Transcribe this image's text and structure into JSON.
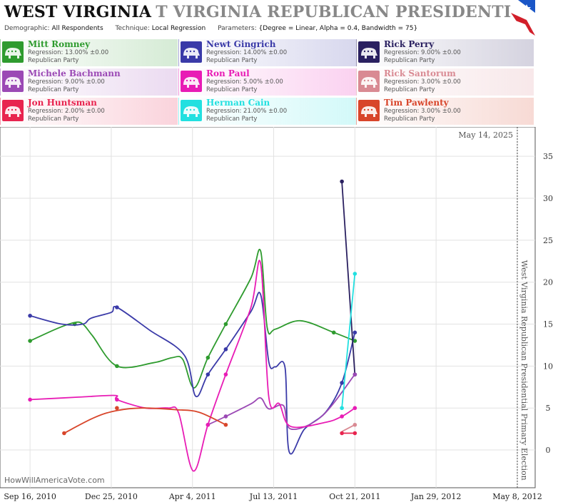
{
  "header": {
    "title_main": "WEST VIRGINIA",
    "title_sub": "T VIRGINIA REPUBLICAN PRESIDENTIAL PRIMA",
    "demographic_label": "Demographic:",
    "demographic_value": "All Respondents",
    "technique_label": "Technique:",
    "technique_value": "Local Regression",
    "parameters_label": "Parameters:",
    "parameters_value": "{Degree = Linear, Alpha = 0.4, Bandwidth = 75}"
  },
  "candidates": [
    {
      "name": "Mitt Romney",
      "regression": "Regression: 13.00% ±0.00",
      "party": "Republican Party",
      "color": "#2e9b2e",
      "icon": "elephant-icon"
    },
    {
      "name": "Newt Gingrich",
      "regression": "Regression: 14.00% ±0.00",
      "party": "Republican Party",
      "color": "#3a3aa8",
      "icon": "elephant-icon"
    },
    {
      "name": "Rick Perry",
      "regression": "Regression: 9.00% ±0.00",
      "party": "Republican Party",
      "color": "#2a2060",
      "icon": "elephant-icon"
    },
    {
      "name": "Michele Bachmann",
      "regression": "Regression: 9.00% ±0.00",
      "party": "Republican Party",
      "color": "#9b49b5",
      "icon": "elephant-icon"
    },
    {
      "name": "Ron Paul",
      "regression": "Regression: 5.00% ±0.00",
      "party": "Republican Party",
      "color": "#e81cb5",
      "icon": "elephant-icon"
    },
    {
      "name": "Rick Santorum",
      "regression": "Regression: 3.00% ±0.00",
      "party": "Republican Party",
      "color": "#d98a93",
      "icon": "elephant-icon"
    },
    {
      "name": "Jon Huntsman",
      "regression": "Regression: 2.00% ±0.00",
      "party": "Republican Party",
      "color": "#e8244f",
      "icon": "elephant-icon"
    },
    {
      "name": "Herman Cain",
      "regression": "Regression: 21.00% ±0.00",
      "party": "Republican Party",
      "color": "#22e0e0",
      "icon": "elephant-icon"
    },
    {
      "name": "Tim Pawlenty",
      "regression": "Regression: 3.00% ±0.00",
      "party": "Republican Party",
      "color": "#d8452a",
      "icon": "elephant-icon"
    }
  ],
  "watermark": "HowWillAmericaVote.com",
  "chart_data": {
    "type": "line",
    "title": "West Virginia Republican Presidential Primary Election",
    "date_annotation": "May 14, 2025",
    "xlabel": "",
    "ylabel": "",
    "x_range": [
      "2010-08-10",
      "2012-05-30"
    ],
    "x_ticks": [
      {
        "date": "2010-09-16",
        "label": "Sep 16, 2010"
      },
      {
        "date": "2010-12-25",
        "label": "Dec 25, 2010"
      },
      {
        "date": "2011-04-04",
        "label": "Apr 4, 2011"
      },
      {
        "date": "2011-07-13",
        "label": "Jul 13, 2011"
      },
      {
        "date": "2011-10-21",
        "label": "Oct 21, 2011"
      },
      {
        "date": "2012-01-29",
        "label": "Jan 29, 2012"
      },
      {
        "date": "2012-05-08",
        "label": "May 8, 2012"
      }
    ],
    "ylim": [
      -4.5,
      38.5
    ],
    "y_ticks": [
      0,
      5,
      10,
      15,
      20,
      25,
      30,
      35
    ],
    "grid": true,
    "election_date": "2012-05-08",
    "series": [
      {
        "name": "Mitt Romney",
        "color": "#2e9b2e",
        "points": [
          [
            "2010-09-16",
            13
          ],
          [
            "2010-11-10",
            15
          ],
          [
            "2011-01-01",
            10
          ],
          [
            "2011-04-23",
            11
          ],
          [
            "2011-05-15",
            15
          ],
          [
            "2011-09-25",
            14
          ],
          [
            "2011-10-21",
            13
          ]
        ],
        "curve": [
          [
            "2010-09-16",
            13
          ],
          [
            "2010-10-20",
            14.5
          ],
          [
            "2010-11-10",
            15.2
          ],
          [
            "2010-11-20",
            15
          ],
          [
            "2010-12-02",
            13.6
          ],
          [
            "2011-01-01",
            10
          ],
          [
            "2011-02-15",
            10.4
          ],
          [
            "2011-03-10",
            11
          ],
          [
            "2011-03-23",
            10.8
          ],
          [
            "2011-04-06",
            7.4
          ],
          [
            "2011-04-23",
            11
          ],
          [
            "2011-05-15",
            15
          ],
          [
            "2011-06-15",
            20.5
          ],
          [
            "2011-06-27",
            23.7
          ],
          [
            "2011-07-05",
            14.6
          ],
          [
            "2011-07-15",
            14.4
          ],
          [
            "2011-08-15",
            15.4
          ],
          [
            "2011-09-25",
            14
          ],
          [
            "2011-10-21",
            13
          ]
        ]
      },
      {
        "name": "Newt Gingrich",
        "color": "#3a3aa8",
        "points": [
          [
            "2010-09-16",
            16
          ],
          [
            "2011-01-01",
            17
          ],
          [
            "2011-04-23",
            9
          ],
          [
            "2011-05-15",
            12
          ],
          [
            "2011-10-05",
            8
          ],
          [
            "2011-10-21",
            14
          ]
        ],
        "curve": [
          [
            "2010-09-16",
            16
          ],
          [
            "2010-10-25",
            15
          ],
          [
            "2010-11-20",
            15
          ],
          [
            "2010-11-30",
            15.7
          ],
          [
            "2010-12-25",
            16.4
          ],
          [
            "2011-01-01",
            17
          ],
          [
            "2011-02-10",
            14.3
          ],
          [
            "2011-03-25",
            11.3
          ],
          [
            "2011-04-08",
            6.4
          ],
          [
            "2011-04-23",
            9
          ],
          [
            "2011-05-15",
            12
          ],
          [
            "2011-06-15",
            16.5
          ],
          [
            "2011-06-27",
            18.5
          ],
          [
            "2011-07-07",
            10.5
          ],
          [
            "2011-07-15",
            9.9
          ],
          [
            "2011-07-27",
            9.8
          ],
          [
            "2011-08-01",
            -0.2
          ],
          [
            "2011-08-20",
            2.5
          ],
          [
            "2011-09-15",
            4.5
          ],
          [
            "2011-10-05",
            8
          ],
          [
            "2011-10-21",
            14
          ]
        ]
      },
      {
        "name": "Rick Perry",
        "color": "#2a2060",
        "points": [
          [
            "2011-10-05",
            32
          ],
          [
            "2011-10-21",
            9
          ]
        ],
        "curve": [
          [
            "2011-10-05",
            32
          ],
          [
            "2011-10-21",
            9
          ]
        ]
      },
      {
        "name": "Michele Bachmann",
        "color": "#9b49b5",
        "points": [
          [
            "2011-04-23",
            3
          ],
          [
            "2011-05-15",
            4
          ],
          [
            "2011-10-21",
            9
          ]
        ],
        "curve": [
          [
            "2011-04-23",
            3
          ],
          [
            "2011-05-15",
            4
          ],
          [
            "2011-06-15",
            5.5
          ],
          [
            "2011-06-27",
            6.2
          ],
          [
            "2011-07-07",
            4.9
          ],
          [
            "2011-07-25",
            5.3
          ],
          [
            "2011-08-03",
            2.5
          ],
          [
            "2011-09-10",
            4
          ],
          [
            "2011-10-21",
            9
          ]
        ]
      },
      {
        "name": "Ron Paul",
        "color": "#e81cb5",
        "points": [
          [
            "2010-09-16",
            6
          ],
          [
            "2011-01-01",
            6
          ],
          [
            "2011-04-23",
            3
          ],
          [
            "2011-05-15",
            9
          ],
          [
            "2011-10-05",
            4
          ],
          [
            "2011-10-21",
            5
          ]
        ],
        "curve": [
          [
            "2010-09-16",
            6
          ],
          [
            "2010-11-15",
            6.3
          ],
          [
            "2010-12-30",
            6.5
          ],
          [
            "2011-01-01",
            6
          ],
          [
            "2011-02-05",
            5
          ],
          [
            "2011-03-05",
            5
          ],
          [
            "2011-03-18",
            4.4
          ],
          [
            "2011-04-05",
            -2.5
          ],
          [
            "2011-04-23",
            3
          ],
          [
            "2011-05-15",
            9
          ],
          [
            "2011-06-15",
            17
          ],
          [
            "2011-06-27",
            22.2
          ],
          [
            "2011-07-07",
            6.3
          ],
          [
            "2011-07-20",
            5.5
          ],
          [
            "2011-08-03",
            2.8
          ],
          [
            "2011-09-15",
            3.3
          ],
          [
            "2011-10-05",
            4
          ],
          [
            "2011-10-21",
            5
          ]
        ]
      },
      {
        "name": "Rick Santorum",
        "color": "#d98a93",
        "points": [
          [
            "2011-10-21",
            3
          ]
        ],
        "curve": [
          [
            "2011-10-05",
            2.2
          ],
          [
            "2011-10-21",
            3
          ]
        ]
      },
      {
        "name": "Jon Huntsman",
        "color": "#e8244f",
        "points": [
          [
            "2011-10-05",
            2
          ],
          [
            "2011-10-21",
            2
          ]
        ],
        "curve": [
          [
            "2011-10-05",
            2
          ],
          [
            "2011-10-21",
            2
          ]
        ]
      },
      {
        "name": "Herman Cain",
        "color": "#22e0e0",
        "points": [
          [
            "2011-10-05",
            5
          ],
          [
            "2011-10-21",
            21
          ]
        ],
        "curve": [
          [
            "2011-10-05",
            5
          ],
          [
            "2011-10-21",
            21
          ]
        ]
      },
      {
        "name": "Tim Pawlenty",
        "color": "#d8452a",
        "points": [
          [
            "2010-10-28",
            2
          ],
          [
            "2011-01-01",
            5
          ],
          [
            "2011-05-15",
            3
          ]
        ],
        "curve": [
          [
            "2010-10-28",
            2
          ],
          [
            "2010-12-05",
            3.9
          ],
          [
            "2011-01-01",
            4.7
          ],
          [
            "2011-02-01",
            5
          ],
          [
            "2011-03-15",
            4.8
          ],
          [
            "2011-04-12",
            4.5
          ],
          [
            "2011-05-15",
            3
          ]
        ]
      }
    ]
  }
}
